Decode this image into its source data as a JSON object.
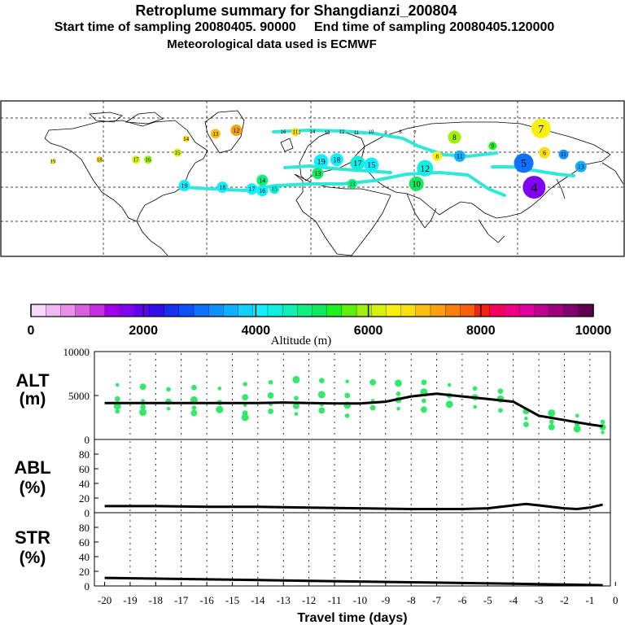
{
  "header": {
    "title": "Retroplume summary for Shangdianzi_200804",
    "sampling": "Start time of sampling 20080405. 90000     End time of sampling 20080405.120000",
    "met": "Meteorological data used is ECMWF"
  },
  "colorbar": {
    "label": "Altitude (m)",
    "ticks": [
      "0",
      "2000",
      "4000",
      "6000",
      "8000",
      "10000"
    ],
    "colors": [
      "#f8d8f8",
      "#f0b8f0",
      "#e890e8",
      "#d860e0",
      "#c030e0",
      "#a000e8",
      "#8000f0",
      "#6000f8",
      "#3010e8",
      "#1830f0",
      "#1050f8",
      "#1070ff",
      "#1090ff",
      "#10b0ff",
      "#10d0ff",
      "#10f0ff",
      "#10f0e0",
      "#10f0b0",
      "#10f080",
      "#10e860",
      "#20f020",
      "#60f010",
      "#a0f010",
      "#d8f010",
      "#f8f010",
      "#f8e010",
      "#f8c010",
      "#f8a010",
      "#f88010",
      "#f86010",
      "#f82010",
      "#f80060",
      "#f00080",
      "#e000a0",
      "#c00090",
      "#a00080",
      "#800070",
      "#600050"
    ]
  },
  "map": {
    "points": [
      {
        "label": "19",
        "lon": -150,
        "lat": 55,
        "color": "#f8f010",
        "size": 3
      },
      {
        "label": "18",
        "lon": -123,
        "lat": 56,
        "color": "#f8e010",
        "size": 4
      },
      {
        "label": "17",
        "lon": -102,
        "lat": 56,
        "color": "#d8f010",
        "size": 5
      },
      {
        "label": "16",
        "lon": -95,
        "lat": 56,
        "color": "#a0f010",
        "size": 5
      },
      {
        "label": "15",
        "lon": -78,
        "lat": 60,
        "color": "#d8f010",
        "size": 5
      },
      {
        "label": "14",
        "lon": -73,
        "lat": 68,
        "color": "#f8e010",
        "size": 4
      },
      {
        "label": "13",
        "lon": -56,
        "lat": 71,
        "color": "#f8c010",
        "size": 6
      },
      {
        "label": "12",
        "lon": -44,
        "lat": 73,
        "color": "#f8a010",
        "size": 7
      },
      {
        "label": "11",
        "lon": -10,
        "lat": 72,
        "color": "#f8e010",
        "size": 5
      },
      {
        "label": "19",
        "lon": -74,
        "lat": 41,
        "color": "#10f0ff",
        "size": 7
      },
      {
        "label": "18",
        "lon": -52,
        "lat": 40,
        "color": "#10f0ff",
        "size": 7
      },
      {
        "label": "17",
        "lon": -35,
        "lat": 39,
        "color": "#10f0ff",
        "size": 7
      },
      {
        "label": "16",
        "lon": -29,
        "lat": 38,
        "color": "#10f0ff",
        "size": 7
      },
      {
        "label": "15",
        "lon": -22,
        "lat": 39,
        "color": "#10f0e0",
        "size": 6
      },
      {
        "label": "14",
        "lon": -29,
        "lat": 44,
        "color": "#10f080",
        "size": 7
      },
      {
        "label": "13",
        "lon": 3,
        "lat": 48,
        "color": "#10e860",
        "size": 7
      },
      {
        "label": "19",
        "lon": 5,
        "lat": 55,
        "color": "#10f0ff",
        "size": 9
      },
      {
        "label": "18",
        "lon": 14,
        "lat": 56,
        "color": "#10f0ff",
        "size": 8
      },
      {
        "label": "17",
        "lon": 26,
        "lat": 54,
        "color": "#10f0e0",
        "size": 9
      },
      {
        "label": "15",
        "lon": 34,
        "lat": 53,
        "color": "#10f0ff",
        "size": 9
      },
      {
        "label": "13",
        "lon": 23,
        "lat": 42,
        "color": "#10f080",
        "size": 6
      },
      {
        "label": "10",
        "lon": 60,
        "lat": 42,
        "color": "#10e860",
        "size": 9
      },
      {
        "label": "12",
        "lon": 65,
        "lat": 51,
        "color": "#10f0e0",
        "size": 10
      },
      {
        "label": "8",
        "lon": 72,
        "lat": 58,
        "color": "#f8f010",
        "size": 6
      },
      {
        "label": "11",
        "lon": 85,
        "lat": 58,
        "color": "#10b0ff",
        "size": 7
      },
      {
        "label": "8",
        "lon": 82,
        "lat": 69,
        "color": "#a0f010",
        "size": 8
      },
      {
        "label": "7",
        "lon": 132,
        "lat": 74,
        "color": "#f8f010",
        "size": 12
      },
      {
        "label": "6",
        "lon": 134,
        "lat": 60,
        "color": "#f8e010",
        "size": 7
      },
      {
        "label": "5",
        "lon": 122,
        "lat": 54,
        "color": "#1070ff",
        "size": 12
      },
      {
        "label": "4",
        "lon": 128,
        "lat": 40,
        "color": "#8000f0",
        "size": 14
      },
      {
        "label": "9",
        "lon": 104,
        "lat": 64,
        "color": "#20f020",
        "size": 5
      },
      {
        "label": "11",
        "lon": 145,
        "lat": 59,
        "color": "#1090ff",
        "size": 6
      },
      {
        "label": "13",
        "lon": 155,
        "lat": 52,
        "color": "#10b0ff",
        "size": 7
      }
    ],
    "tiny_labels": [
      "16",
      "15",
      "14",
      "13",
      "12",
      "11",
      "10",
      "9",
      "8",
      "7"
    ]
  },
  "chart_data": [
    {
      "type": "line",
      "title": "ALT",
      "ylabel": "(m)",
      "ylim": [
        0,
        10000
      ],
      "yticks": [
        "10000",
        "5000",
        "0"
      ],
      "x": [
        -20,
        -19,
        -18,
        -17,
        -16,
        -15,
        -14,
        -13,
        -12,
        -11,
        -10,
        -9,
        -8,
        -7,
        -6,
        -5,
        -4,
        -3,
        -2,
        -1,
        -0.5
      ],
      "series": [
        {
          "name": "mean altitude",
          "values": [
            4150,
            4150,
            4150,
            4150,
            4150,
            4150,
            4150,
            4200,
            4150,
            4100,
            4100,
            4300,
            4900,
            5200,
            4900,
            4600,
            4300,
            2700,
            2200,
            1700,
            1500
          ]
        },
        {
          "name": "particles",
          "points": [
            [
              -19.5,
              6200
            ],
            [
              -19.5,
              4600
            ],
            [
              -19.5,
              3800
            ],
            [
              -19.5,
              3200
            ],
            [
              -18.5,
              6000
            ],
            [
              -18.5,
              4400
            ],
            [
              -18.5,
              3700
            ],
            [
              -18.5,
              3100
            ],
            [
              -17.5,
              5700
            ],
            [
              -17.5,
              4300
            ],
            [
              -17.5,
              3500
            ],
            [
              -16.5,
              5900
            ],
            [
              -16.5,
              4500
            ],
            [
              -16.5,
              3600
            ],
            [
              -16.5,
              3000
            ],
            [
              -15.5,
              5800
            ],
            [
              -15.5,
              4200
            ],
            [
              -15.5,
              3400
            ],
            [
              -14.5,
              6300
            ],
            [
              -14.5,
              4800
            ],
            [
              -14.5,
              3900
            ],
            [
              -14.5,
              3000
            ],
            [
              -14.5,
              2500
            ],
            [
              -13.5,
              6500
            ],
            [
              -13.5,
              5000
            ],
            [
              -13.5,
              4000
            ],
            [
              -13.5,
              3200
            ],
            [
              -12.5,
              6800
            ],
            [
              -12.5,
              4700
            ],
            [
              -12.5,
              3800
            ],
            [
              -12.5,
              2900
            ],
            [
              -11.5,
              6700
            ],
            [
              -11.5,
              5100
            ],
            [
              -11.5,
              4000
            ],
            [
              -11.5,
              3300
            ],
            [
              -10.5,
              6600
            ],
            [
              -10.5,
              5000
            ],
            [
              -10.5,
              3900
            ],
            [
              -10.5,
              2700
            ],
            [
              -9.5,
              6500
            ],
            [
              -9.5,
              4400
            ],
            [
              -9.5,
              3600
            ],
            [
              -8.5,
              6400
            ],
            [
              -8.5,
              5200
            ],
            [
              -8.5,
              4500
            ],
            [
              -8.5,
              3500
            ],
            [
              -7.5,
              6500
            ],
            [
              -7.5,
              5400
            ],
            [
              -7.5,
              4400
            ],
            [
              -7.5,
              3400
            ],
            [
              -6.5,
              6200
            ],
            [
              -6.5,
              5000
            ],
            [
              -6.5,
              4000
            ],
            [
              -5.5,
              5800
            ],
            [
              -5.5,
              4800
            ],
            [
              -5.5,
              3700
            ],
            [
              -4.5,
              5500
            ],
            [
              -4.5,
              4600
            ],
            [
              -4.5,
              3300
            ],
            [
              -3.5,
              3200
            ],
            [
              -3.5,
              2400
            ],
            [
              -3.5,
              1700
            ],
            [
              -2.5,
              3000
            ],
            [
              -2.5,
              2000
            ],
            [
              -2.5,
              1400
            ],
            [
              -1.5,
              2700
            ],
            [
              -1.5,
              1800
            ],
            [
              -1.5,
              1200
            ],
            [
              -0.5,
              2000
            ],
            [
              -0.5,
              1400
            ],
            [
              -0.5,
              800
            ]
          ]
        }
      ]
    },
    {
      "type": "line",
      "title": "ABL",
      "ylabel": "(%)",
      "ylim": [
        0,
        100
      ],
      "yticks": [
        "80",
        "60",
        "40",
        "20",
        "0"
      ],
      "x": [
        -20,
        -18,
        -16,
        -14,
        -12,
        -10,
        -8,
        -6,
        -5,
        -4,
        -3.5,
        -3,
        -2,
        -1.5,
        -1,
        -0.5
      ],
      "values": [
        9,
        9,
        8,
        8,
        7,
        6,
        5,
        5,
        6,
        10,
        12,
        10,
        6,
        5,
        7,
        11
      ]
    },
    {
      "type": "line",
      "title": "STR",
      "ylabel": "(%)",
      "ylim": [
        0,
        100
      ],
      "yticks": [
        "80",
        "60",
        "40",
        "20",
        "0"
      ],
      "x": [
        -20,
        -18,
        -16,
        -14,
        -12,
        -10,
        -8,
        -6,
        -4,
        -2,
        -0.5
      ],
      "values": [
        11,
        10,
        9,
        8,
        7,
        6,
        5,
        4,
        3,
        2,
        1
      ],
      "xlabel": "Travel time (days)",
      "xticks": [
        "-20",
        "-19",
        "-18",
        "-17",
        "-16",
        "-15",
        "-14",
        "-13",
        "-12",
        "-11",
        "-10",
        "-9",
        "-8",
        "-7",
        "-6",
        "-5",
        "-4",
        "-3",
        "-2",
        "-1",
        "0"
      ]
    }
  ]
}
